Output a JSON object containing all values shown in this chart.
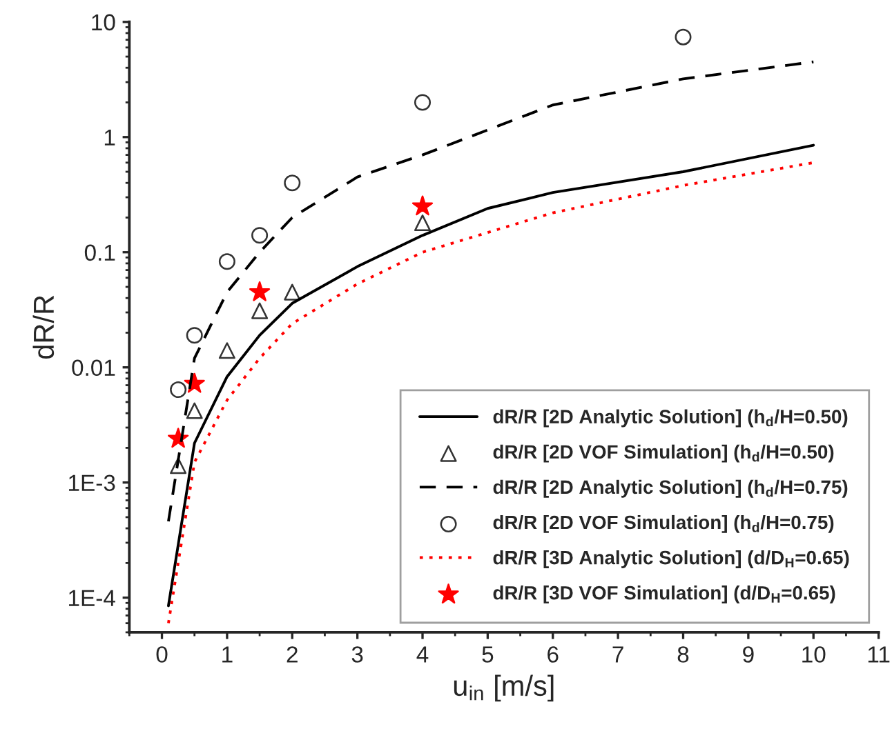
{
  "chart_data": {
    "type": "line",
    "xlabel": "u$_{in}$ [m/s]",
    "ylabel": "dR/R",
    "xlim": [
      -0.5,
      11
    ],
    "xticks": [
      0,
      1,
      2,
      3,
      4,
      5,
      6,
      7,
      8,
      9,
      10,
      11
    ],
    "ylim": [
      5e-05,
      10
    ],
    "log": true,
    "yticks": [
      {
        "value": 0.0001,
        "label": "1E-4"
      },
      {
        "value": 0.001,
        "label": "1E-3"
      },
      {
        "value": 0.01,
        "label": "0.01"
      },
      {
        "value": 0.1,
        "label": "0.1"
      },
      {
        "value": 1,
        "label": "1"
      },
      {
        "value": 10,
        "label": "10"
      }
    ],
    "grid": false,
    "legend": "bottom right",
    "series": [
      {
        "name": "dR/R [2D Analytic Solution] (h$_{d}$/H=0.50)",
        "line_style": "solid",
        "marker": "none",
        "color": "#000000",
        "x": [
          0.1,
          0.5,
          1,
          1.5,
          2,
          3,
          4,
          5,
          6,
          8,
          10
        ],
        "values": [
          8.5e-05,
          0.0022,
          0.0083,
          0.019,
          0.036,
          0.075,
          0.14,
          0.24,
          0.33,
          0.5,
          0.85
        ]
      },
      {
        "name": "dR/R [2D VOF Simulation] (h$_{d}$/H=0.50)",
        "type": "scatter",
        "marker": "triangle",
        "color": "#333333",
        "x": [
          0.25,
          0.5,
          1,
          1.5,
          2,
          4
        ],
        "values": [
          0.0014,
          0.0042,
          0.014,
          0.031,
          0.045,
          0.18
        ]
      },
      {
        "name": "dR/R [2D Analytic Solution] (h$_{d}$/H=0.75)",
        "line_style": "dashed",
        "marker": "none",
        "color": "#000000",
        "x": [
          0.1,
          0.5,
          1,
          1.5,
          2,
          3,
          4,
          6,
          8,
          10
        ],
        "values": [
          0.00046,
          0.012,
          0.045,
          0.1,
          0.2,
          0.45,
          0.7,
          1.9,
          3.2,
          4.5
        ]
      },
      {
        "name": "dR/R [2D VOF Simulation] (h$_{d}$/H=0.75)",
        "type": "scatter",
        "marker": "circle",
        "color": "#333333",
        "x": [
          0.25,
          0.5,
          1,
          1.5,
          2,
          4,
          8
        ],
        "values": [
          0.0064,
          0.019,
          0.083,
          0.14,
          0.4,
          2.0,
          7.4
        ]
      },
      {
        "name": "dR/R [3D Analytic Solution] (d/D$_{H}$=0.65)",
        "line_style": "dotted",
        "marker": "none",
        "color": "#ff0000",
        "x": [
          0.1,
          0.5,
          1,
          1.5,
          2,
          3,
          4,
          6,
          8,
          10
        ],
        "values": [
          6e-05,
          0.0015,
          0.0052,
          0.012,
          0.024,
          0.053,
          0.1,
          0.22,
          0.38,
          0.6
        ]
      },
      {
        "name": "dR/R [3D VOF Simulation] (d/D$_{H}$=0.65)",
        "type": "scatter",
        "marker": "star",
        "color": "#ff0000",
        "x": [
          0.25,
          0.5,
          1.5,
          4
        ],
        "values": [
          0.0024,
          0.0072,
          0.045,
          0.25
        ]
      }
    ]
  }
}
